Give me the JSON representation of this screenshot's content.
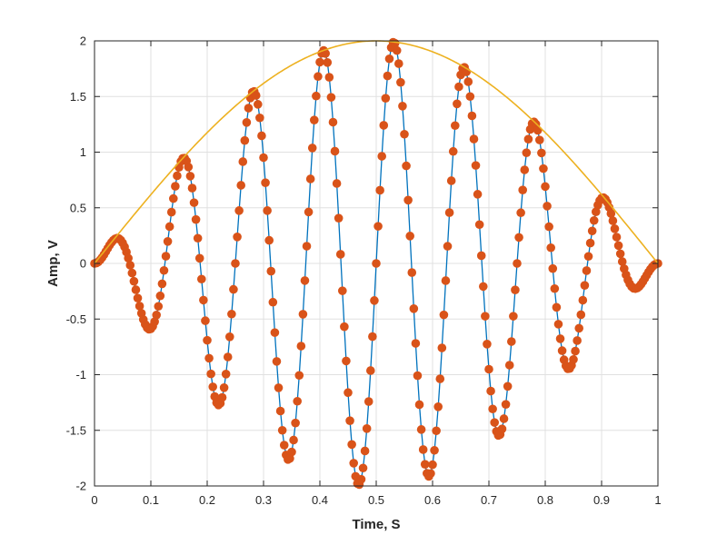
{
  "chart_data": {
    "type": "line",
    "title": "",
    "xlabel": "Time, S",
    "ylabel": "Amp, V",
    "xlim": [
      0,
      1
    ],
    "ylim": [
      -2,
      2
    ],
    "grid": true,
    "legend": "none",
    "x_ticks": [
      "0",
      "0.1",
      "0.2",
      "0.3",
      "0.4",
      "0.5",
      "0.6",
      "0.7",
      "0.8",
      "0.9",
      "1"
    ],
    "y_ticks": [
      "2",
      "1.5",
      "1",
      "0.5",
      "0",
      "-0.5",
      "-1",
      "-1.5",
      "-2"
    ],
    "sample_count": 301,
    "signal_frequency_hz": 8,
    "envelope_peak": 2,
    "colors": {
      "signal_line": "#0072BD",
      "sample_markers": "#D95319",
      "envelope": "#EDB120",
      "grid": "#e0e0e0",
      "axes": "#262626"
    },
    "series": [
      {
        "formula": "2*sin(pi*t)*sin(2*pi*8*t)",
        "style": "line"
      },
      {
        "formula": "2*sin(pi*t)*sin(2*pi*8*t)",
        "style": "markers"
      },
      {
        "formula": "2*sin(pi*t)",
        "style": "line"
      }
    ]
  }
}
